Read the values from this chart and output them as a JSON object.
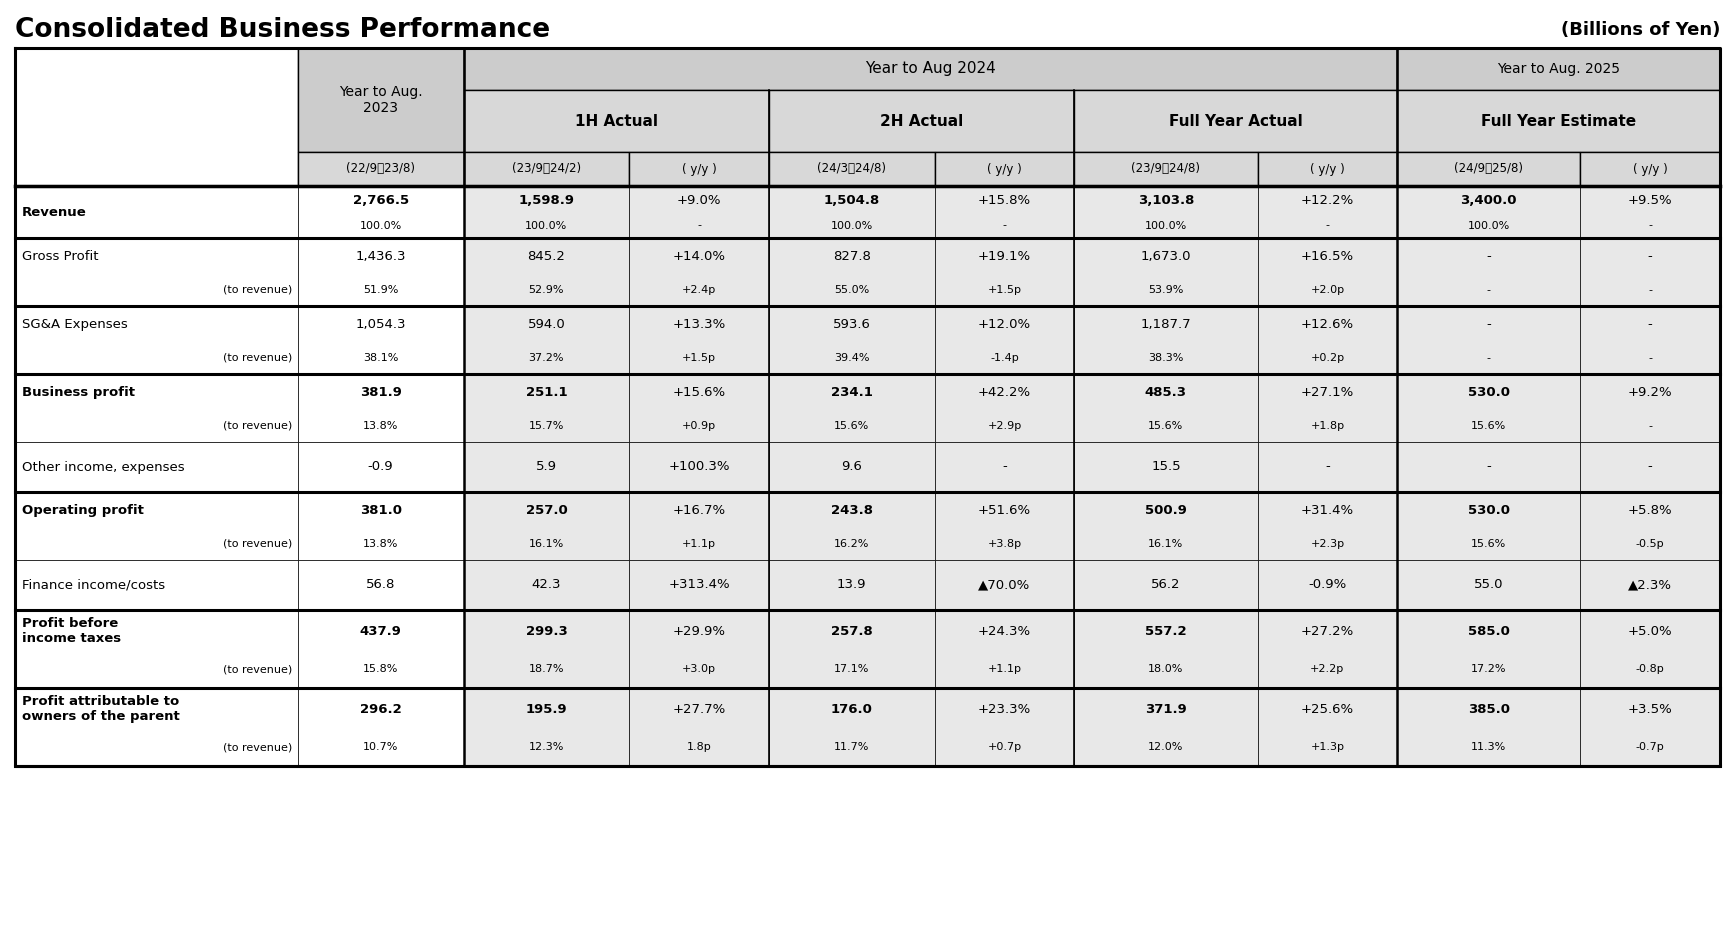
{
  "title": "Consolidated Business Performance",
  "subtitle": "(Billions of Yen)",
  "bg_color": "#ffffff",
  "header_bg": "#cccccc",
  "subheader_bg": "#d8d8d8",
  "data_bg_gray": "#e8e8e8",
  "rows": [
    {
      "label": "Revenue",
      "sub_label": "",
      "values": [
        "2,766.5",
        "1,598.9",
        "+9.0%",
        "1,504.8",
        "+15.8%",
        "3,103.8",
        "+12.2%",
        "3,400.0",
        "+9.5%"
      ],
      "sub_values": [
        "100.0%",
        "100.0%",
        "-",
        "100.0%",
        "-",
        "100.0%",
        "-",
        "100.0%",
        "-"
      ],
      "bold_main": true,
      "thick_top": true,
      "thick_bottom": false
    },
    {
      "label": "Gross Profit",
      "sub_label": "(to revenue)",
      "values": [
        "1,436.3",
        "845.2",
        "+14.0%",
        "827.8",
        "+19.1%",
        "1,673.0",
        "+16.5%",
        "-",
        "-"
      ],
      "sub_values": [
        "51.9%",
        "52.9%",
        "+2.4p",
        "55.0%",
        "+1.5p",
        "53.9%",
        "+2.0p",
        "-",
        "-"
      ],
      "bold_main": false,
      "thick_top": true,
      "thick_bottom": false
    },
    {
      "label": "SG&A Expenses",
      "sub_label": "(to revenue)",
      "values": [
        "1,054.3",
        "594.0",
        "+13.3%",
        "593.6",
        "+12.0%",
        "1,187.7",
        "+12.6%",
        "-",
        "-"
      ],
      "sub_values": [
        "38.1%",
        "37.2%",
        "+1.5p",
        "39.4%",
        "-1.4p",
        "38.3%",
        "+0.2p",
        "-",
        "-"
      ],
      "bold_main": false,
      "thick_top": true,
      "thick_bottom": false
    },
    {
      "label": "Business profit",
      "sub_label": "(to revenue)",
      "values": [
        "381.9",
        "251.1",
        "+15.6%",
        "234.1",
        "+42.2%",
        "485.3",
        "+27.1%",
        "530.0",
        "+9.2%"
      ],
      "sub_values": [
        "13.8%",
        "15.7%",
        "+0.9p",
        "15.6%",
        "+2.9p",
        "15.6%",
        "+1.8p",
        "15.6%",
        "-"
      ],
      "bold_main": true,
      "thick_top": true,
      "thick_bottom": false
    },
    {
      "label": "Other income, expenses",
      "sub_label": "",
      "values": [
        "-0.9",
        "5.9",
        "+100.3%",
        "9.6",
        "-",
        "15.5",
        "-",
        "-",
        "-"
      ],
      "sub_values": [
        "",
        "",
        "",
        "",
        "",
        "",
        "",
        "",
        ""
      ],
      "bold_main": false,
      "thick_top": false,
      "thick_bottom": false
    },
    {
      "label": "Operating profit",
      "sub_label": "(to revenue)",
      "values": [
        "381.0",
        "257.0",
        "+16.7%",
        "243.8",
        "+51.6%",
        "500.9",
        "+31.4%",
        "530.0",
        "+5.8%"
      ],
      "sub_values": [
        "13.8%",
        "16.1%",
        "+1.1p",
        "16.2%",
        "+3.8p",
        "16.1%",
        "+2.3p",
        "15.6%",
        "-0.5p"
      ],
      "bold_main": true,
      "thick_top": true,
      "thick_bottom": false
    },
    {
      "label": "Finance income/costs",
      "sub_label": "",
      "values": [
        "56.8",
        "42.3",
        "+313.4%",
        "13.9",
        "▲70.0%",
        "56.2",
        "-0.9%",
        "55.0",
        "▲2.3%"
      ],
      "sub_values": [
        "",
        "",
        "",
        "",
        "",
        "",
        "",
        "",
        ""
      ],
      "bold_main": false,
      "thick_top": false,
      "thick_bottom": false
    },
    {
      "label": "Profit before\nincome taxes",
      "sub_label": "(to revenue)",
      "values": [
        "437.9",
        "299.3",
        "+29.9%",
        "257.8",
        "+24.3%",
        "557.2",
        "+27.2%",
        "585.0",
        "+5.0%"
      ],
      "sub_values": [
        "15.8%",
        "18.7%",
        "+3.0p",
        "17.1%",
        "+1.1p",
        "18.0%",
        "+2.2p",
        "17.2%",
        "-0.8p"
      ],
      "bold_main": true,
      "thick_top": true,
      "thick_bottom": false
    },
    {
      "label": "Profit attributable to\nowners of the parent",
      "sub_label": "(to revenue)",
      "values": [
        "296.2",
        "195.9",
        "+27.7%",
        "176.0",
        "+23.3%",
        "371.9",
        "+25.6%",
        "385.0",
        "+3.5%"
      ],
      "sub_values": [
        "10.7%",
        "12.3%",
        "1.8p",
        "11.7%",
        "+0.7p",
        "12.0%",
        "+1.3p",
        "11.3%",
        "-0.7p"
      ],
      "bold_main": true,
      "thick_top": true,
      "thick_bottom": true
    }
  ]
}
